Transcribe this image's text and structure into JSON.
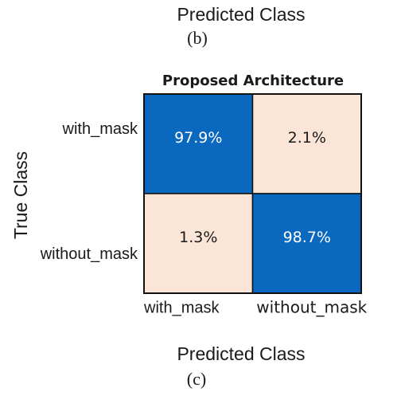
{
  "chart_data": {
    "type": "heatmap",
    "title": "Proposed Architecture",
    "x_label": "Predicted Class",
    "y_label": "True Class",
    "columns": [
      "with_mask",
      "without_mask"
    ],
    "rows": [
      "with_mask",
      "without_mask"
    ],
    "values": [
      [
        97.9,
        2.1
      ],
      [
        1.3,
        98.7
      ]
    ],
    "value_labels": [
      [
        "97.9%",
        "2.1%"
      ],
      [
        "1.3%",
        "98.7%"
      ]
    ],
    "cell_colors": [
      [
        "#0a68bf",
        "#fbe5d6"
      ],
      [
        "#fbe5d6",
        "#0a68bf"
      ]
    ],
    "text_colors": [
      [
        "#ffffff",
        "#1a1a1a"
      ],
      [
        "#1a1a1a",
        "#ffffff"
      ]
    ],
    "annotations": [
      "Predicted Class",
      "(b)",
      "(c)"
    ]
  }
}
